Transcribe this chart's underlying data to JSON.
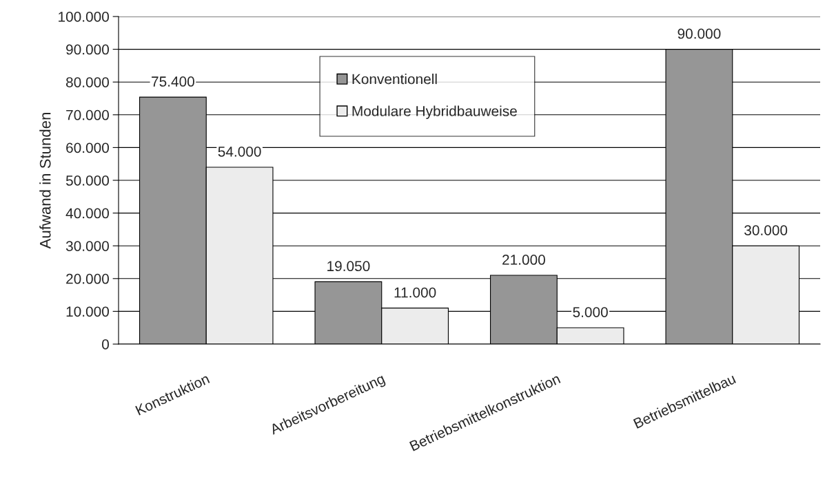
{
  "chart_data": {
    "type": "bar",
    "ylabel": "Aufwand in Stunden",
    "categories": [
      "Konstruktion",
      "Arbeitsvorbereitung",
      "Betriebsmittelkonstruktion",
      "Betriebsmittelbau"
    ],
    "series": [
      {
        "name": "Konventionell",
        "color": "#969696",
        "values": [
          75400,
          19050,
          21000,
          90000
        ],
        "value_labels": [
          "75.400",
          "19.050",
          "21.000",
          "90.000"
        ]
      },
      {
        "name": "Modulare Hybridbauweise",
        "color": "#ececec",
        "values": [
          54000,
          11000,
          5000,
          30000
        ],
        "value_labels": [
          "54.000",
          "11.000",
          "5.000",
          "30.000"
        ]
      }
    ],
    "ylim": [
      0,
      100000
    ],
    "yticks": [
      {
        "value": 0,
        "label": "0"
      },
      {
        "value": 10000,
        "label": "10.000"
      },
      {
        "value": 20000,
        "label": "20.000"
      },
      {
        "value": 30000,
        "label": "30.000"
      },
      {
        "value": 40000,
        "label": "40.000"
      },
      {
        "value": 50000,
        "label": "50.000"
      },
      {
        "value": 60000,
        "label": "60.000"
      },
      {
        "value": 70000,
        "label": "70.000"
      },
      {
        "value": 80000,
        "label": "80.000"
      },
      {
        "value": 90000,
        "label": "90.000"
      },
      {
        "value": 100000,
        "label": "100.000"
      }
    ],
    "grid": "y",
    "legend": "top"
  }
}
